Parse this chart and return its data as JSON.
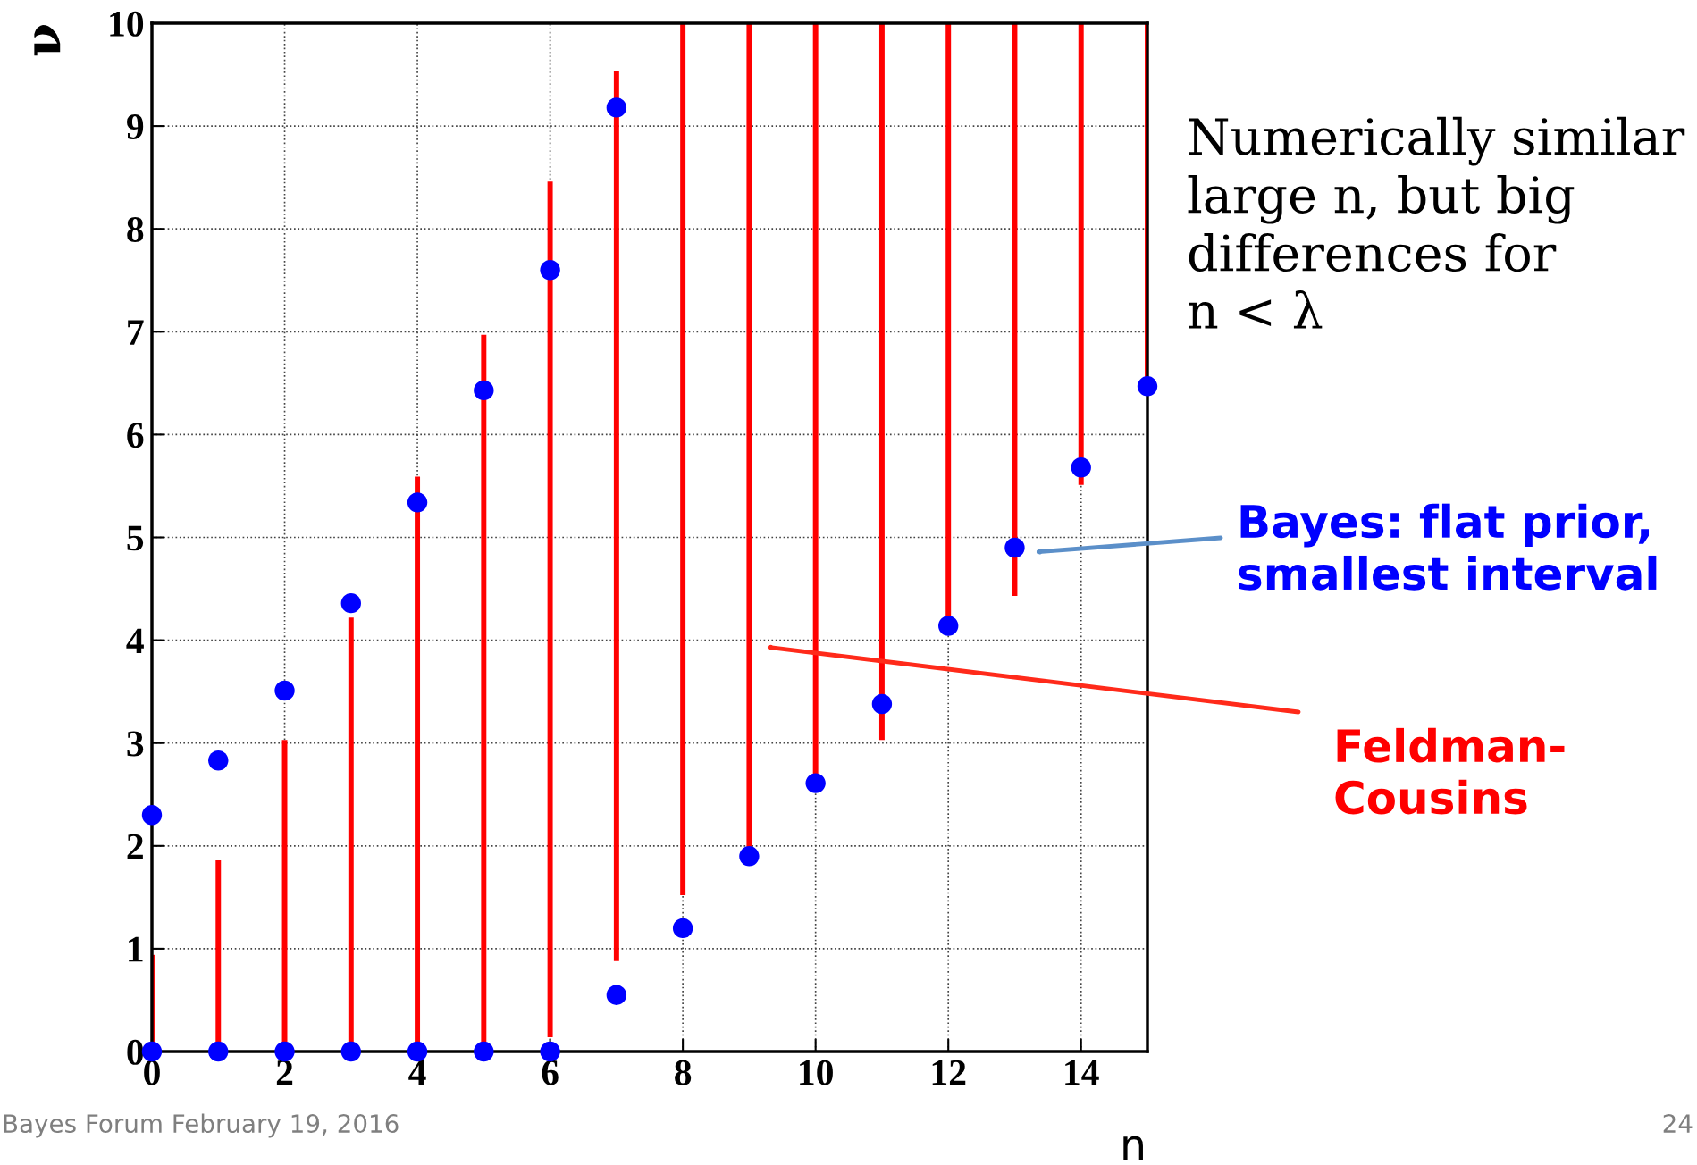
{
  "chart_data": {
    "type": "bar",
    "xlabel": "n",
    "ylabel": "ν",
    "xlim": [
      0,
      15
    ],
    "xticks": [
      0,
      2,
      4,
      6,
      8,
      10,
      12,
      14
    ],
    "ylim": [
      0,
      10
    ],
    "yticks": [
      0,
      1,
      2,
      3,
      4,
      5,
      6,
      7,
      8,
      9,
      10
    ],
    "grid": true,
    "marker": "circle",
    "series": [
      {
        "color": "#ff0000",
        "x": [
          0,
          1,
          2,
          3,
          4,
          5,
          6,
          7,
          8,
          9,
          10,
          11,
          12,
          13,
          14,
          15
        ],
        "base": [
          0,
          0,
          0,
          0,
          0,
          0,
          0.14,
          0.88,
          1.52,
          1.95,
          2.68,
          3.03,
          4.05,
          4.43,
          5.51,
          6.4
        ],
        "values": [
          0.94,
          1.86,
          3.03,
          4.22,
          5.59,
          6.97,
          8.32,
          8.65,
          8.48,
          8.05,
          7.32,
          6.97,
          5.95,
          5.57,
          4.49,
          3.6
        ]
      },
      {
        "type": "scatter",
        "color": "#0000ff",
        "x": [
          0,
          1,
          2,
          3,
          4,
          5,
          6,
          7,
          8,
          9,
          10,
          11,
          12,
          13,
          14,
          15
        ],
        "values": [
          0,
          0,
          0,
          0,
          0,
          0,
          0,
          0.55,
          1.2,
          1.9,
          2.61,
          3.38,
          4.14,
          4.9,
          5.68,
          6.47
        ]
      },
      {
        "type": "scatter",
        "color": "#0000ff",
        "x": [
          0,
          1,
          2,
          3,
          4,
          5,
          6,
          7
        ],
        "values": [
          2.3,
          2.83,
          3.51,
          4.36,
          5.34,
          6.43,
          7.6,
          9.18
        ]
      }
    ],
    "annotations": [
      "Feldman-\nCousins",
      "Bayes: flat prior,\nsmallest interval",
      "Numerically similar\nlarge n, but big\ndifferences for\nn < λ",
      "Bayes Forum February 19, 2016",
      "24"
    ]
  }
}
